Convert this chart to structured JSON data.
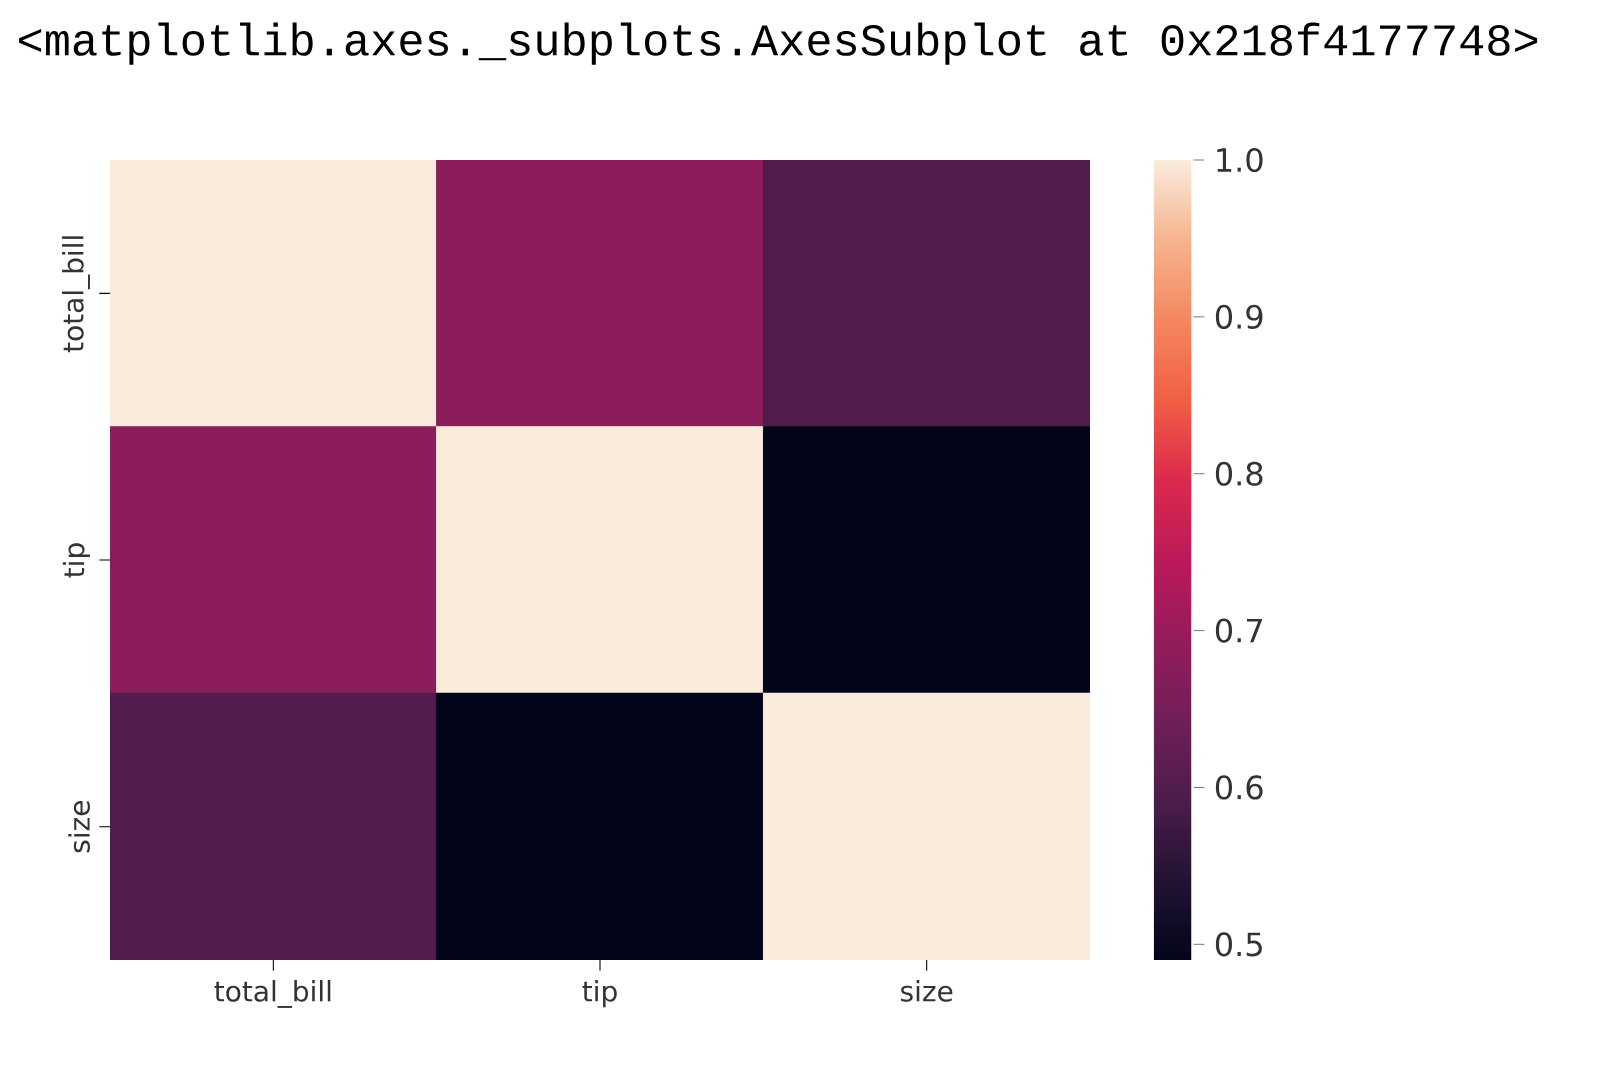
{
  "chart_data": {
    "type": "heatmap",
    "annotations": [
      "<matplotlib.axes._subplots.AxesSubplot at 0x218f4177748>"
    ],
    "categories": [
      "total_bill",
      "tip",
      "size"
    ],
    "y_categories": [
      "total_bill",
      "tip",
      "size"
    ],
    "cells": [
      [
        1.0,
        0.68,
        0.6
      ],
      [
        0.68,
        1.0,
        0.49
      ],
      [
        0.6,
        0.49,
        1.0
      ]
    ],
    "clim": [
      0.49,
      1.0
    ],
    "cticks": [
      0.5,
      0.6,
      0.7,
      0.8,
      0.9,
      {
        "value": 1.0,
        "label": "1.0"
      }
    ]
  }
}
